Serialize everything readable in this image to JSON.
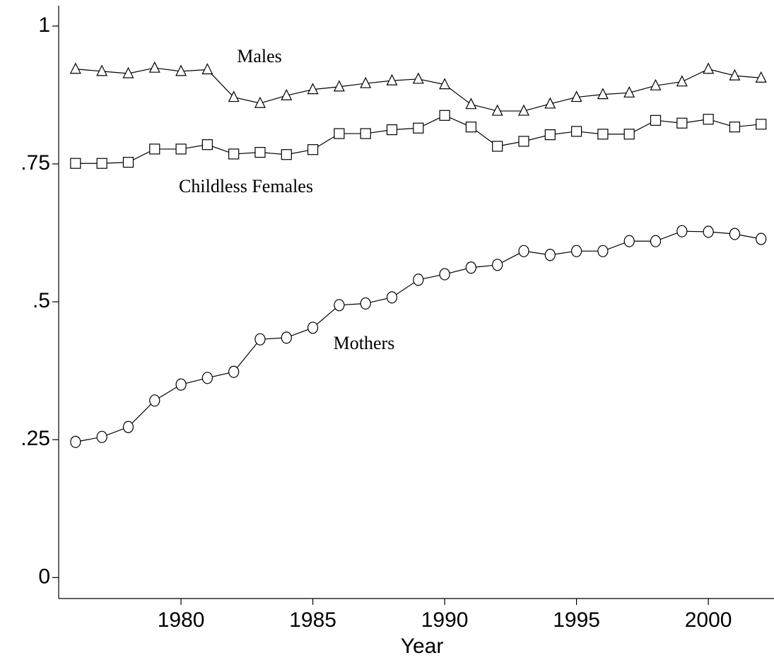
{
  "chart_data": {
    "type": "line",
    "x_label": "Year",
    "x": [
      1976,
      1977,
      1978,
      1979,
      1980,
      1981,
      1982,
      1983,
      1984,
      1985,
      1986,
      1987,
      1988,
      1989,
      1990,
      1991,
      1992,
      1993,
      1994,
      1995,
      1996,
      1997,
      1998,
      1999,
      2000,
      2001,
      2002
    ],
    "series": [
      {
        "name": "Males",
        "color": "#000000",
        "marker": "triangle",
        "values": [
          0.922,
          0.918,
          0.914,
          0.924,
          0.918,
          0.921,
          0.871,
          0.86,
          0.874,
          0.885,
          0.89,
          0.896,
          0.901,
          0.904,
          0.894,
          0.858,
          0.846,
          0.846,
          0.859,
          0.871,
          0.876,
          0.879,
          0.892,
          0.899,
          0.922,
          0.91,
          0.906
        ]
      },
      {
        "name": "Childless Females",
        "color": "#000000",
        "marker": "square",
        "values": [
          0.751,
          0.751,
          0.753,
          0.777,
          0.777,
          0.785,
          0.768,
          0.771,
          0.767,
          0.776,
          0.805,
          0.805,
          0.812,
          0.815,
          0.838,
          0.817,
          0.782,
          0.791,
          0.803,
          0.809,
          0.804,
          0.804,
          0.829,
          0.824,
          0.831,
          0.817,
          0.822
        ]
      },
      {
        "name": "Mothers",
        "color": "#000000",
        "marker": "circle",
        "values": [
          0.246,
          0.255,
          0.273,
          0.321,
          0.35,
          0.362,
          0.373,
          0.432,
          0.435,
          0.453,
          0.494,
          0.497,
          0.508,
          0.54,
          0.55,
          0.562,
          0.567,
          0.592,
          0.585,
          0.592,
          0.592,
          0.61,
          0.61,
          0.628,
          0.627,
          0.623,
          0.614
        ]
      }
    ],
    "xlim": [
      1975.36,
      2002.49
    ],
    "xticks": [
      1980,
      1985,
      1990,
      1995,
      2000
    ],
    "ylim": [
      -0.038,
      1.037
    ],
    "yticks": [
      0,
      {
        "value": 0.25,
        "label": ".25"
      },
      {
        "value": 0.5,
        "label": ".5"
      },
      {
        "value": 0.75,
        "label": ".75"
      },
      1
    ],
    "grid": false
  }
}
